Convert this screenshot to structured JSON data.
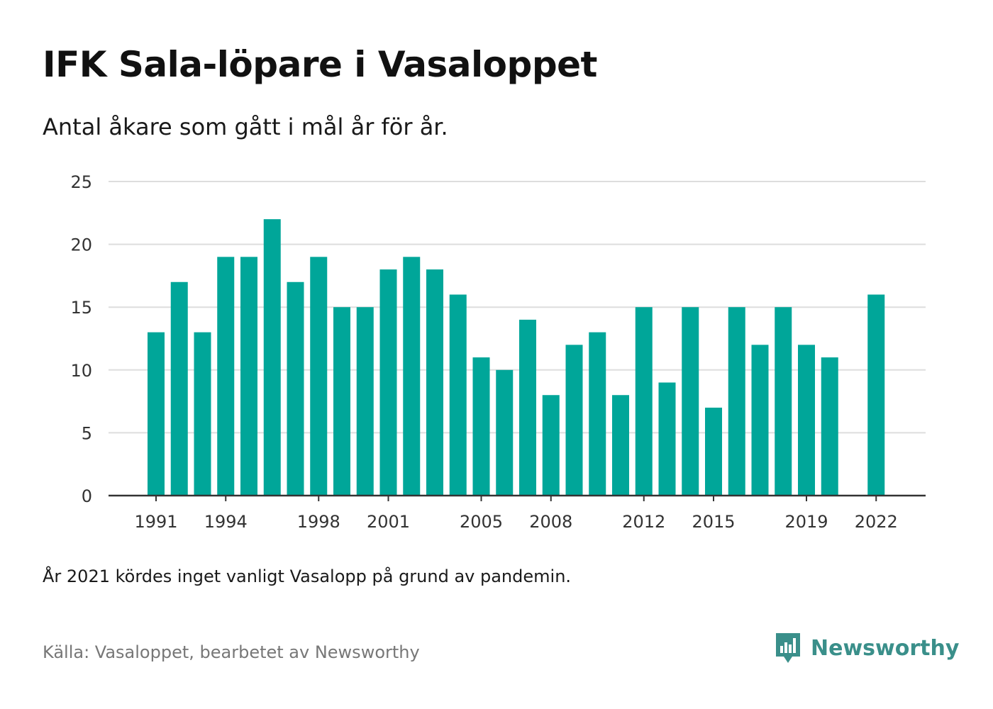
{
  "title": "IFK Sala-löpare i Vasaloppet",
  "subtitle": "Antal åkare som gått i mål år för år.",
  "note": "År 2021 kördes inget vanligt Vasalopp på grund av pandemin.",
  "source": "Källa: Vasaloppet, bearbetet av Newsworthy",
  "brand": {
    "name": "Newsworthy",
    "icon": "newsworthy-logo-icon",
    "color": "#3a8f8a"
  },
  "chart_data": {
    "type": "bar",
    "bar_color": "#00a699",
    "categories": [
      1991,
      1992,
      1993,
      1994,
      1995,
      1996,
      1997,
      1998,
      1999,
      2000,
      2001,
      2002,
      2003,
      2004,
      2005,
      2006,
      2007,
      2008,
      2009,
      2010,
      2011,
      2012,
      2013,
      2014,
      2015,
      2016,
      2017,
      2018,
      2019,
      2020,
      2021,
      2022
    ],
    "values": [
      13,
      17,
      13,
      19,
      19,
      22,
      17,
      19,
      15,
      15,
      18,
      19,
      18,
      16,
      11,
      10,
      14,
      8,
      12,
      13,
      8,
      15,
      9,
      15,
      7,
      15,
      12,
      15,
      12,
      11,
      null,
      16
    ],
    "x_tick_labels": [
      "1991",
      "1994",
      "1998",
      "2001",
      "2005",
      "2008",
      "2012",
      "2015",
      "2019",
      "2022"
    ],
    "y_ticks": [
      0,
      5,
      10,
      15,
      20,
      25
    ],
    "ylim": [
      0,
      25
    ],
    "grid": true,
    "legend": "none"
  }
}
